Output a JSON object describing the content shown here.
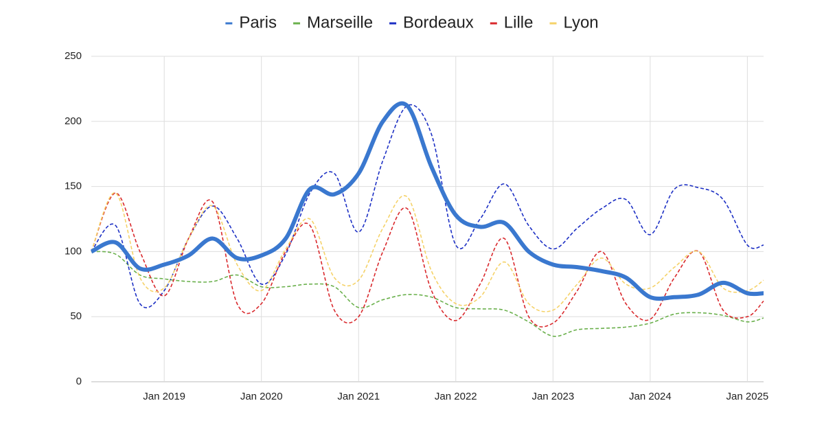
{
  "chart_data": {
    "type": "line",
    "x": [
      "2018-04",
      "2018-07",
      "2018-10",
      "2019-01",
      "2019-04",
      "2019-07",
      "2019-10",
      "2020-01",
      "2020-04",
      "2020-07",
      "2020-10",
      "2021-01",
      "2021-04",
      "2021-07",
      "2021-10",
      "2022-01",
      "2022-04",
      "2022-07",
      "2022-10",
      "2023-01",
      "2023-04",
      "2023-07",
      "2023-10",
      "2024-01",
      "2024-04",
      "2024-07",
      "2024-10",
      "2025-01",
      "2025-03"
    ],
    "series": [
      {
        "name": "Paris",
        "color": "#3a78cf",
        "values": [
          100,
          107,
          87,
          90,
          97,
          110,
          95,
          97,
          110,
          148,
          144,
          160,
          200,
          212,
          165,
          128,
          119,
          122,
          100,
          90,
          88,
          85,
          80,
          65,
          65,
          67,
          76,
          68,
          68
        ]
      },
      {
        "name": "Marseille",
        "color": "#6ab04c",
        "values": [
          100,
          98,
          82,
          79,
          77,
          77,
          82,
          73,
          73,
          75,
          73,
          57,
          63,
          67,
          65,
          57,
          56,
          55,
          46,
          35,
          40,
          41,
          42,
          45,
          52,
          53,
          51,
          46,
          49
        ]
      },
      {
        "name": "Bordeaux",
        "color": "#1c2fc4",
        "values": [
          100,
          120,
          60,
          70,
          110,
          135,
          110,
          75,
          98,
          145,
          160,
          115,
          170,
          212,
          190,
          105,
          125,
          152,
          120,
          102,
          118,
          133,
          140,
          113,
          148,
          149,
          140,
          105,
          105
        ]
      },
      {
        "name": "Lille",
        "color": "#d9282c",
        "values": [
          100,
          145,
          100,
          66,
          110,
          138,
          60,
          60,
          100,
          120,
          55,
          50,
          100,
          133,
          70,
          47,
          75,
          110,
          50,
          45,
          70,
          100,
          60,
          48,
          80,
          100,
          55,
          50,
          62
        ]
      },
      {
        "name": "Lyon",
        "color": "#f5d268",
        "values": [
          100,
          145,
          80,
          72,
          110,
          135,
          90,
          70,
          102,
          125,
          80,
          78,
          118,
          142,
          85,
          60,
          65,
          92,
          60,
          55,
          75,
          95,
          75,
          72,
          88,
          100,
          72,
          70,
          78
        ]
      }
    ],
    "xlim": [
      "2018-04",
      "2025-03"
    ],
    "xticks": [
      {
        "value": "2019-01",
        "label": "Jan 2019"
      },
      {
        "value": "2020-01",
        "label": "Jan 2020"
      },
      {
        "value": "2021-01",
        "label": "Jan 2021"
      },
      {
        "value": "2022-01",
        "label": "Jan 2022"
      },
      {
        "value": "2023-01",
        "label": "Jan 2023"
      },
      {
        "value": "2024-01",
        "label": "Jan 2024"
      },
      {
        "value": "2025-01",
        "label": "Jan 2025"
      }
    ],
    "ylim": [
      0,
      250
    ],
    "yticks": [
      0,
      50,
      100,
      150,
      200,
      250
    ],
    "grid": true,
    "legend": "top"
  }
}
